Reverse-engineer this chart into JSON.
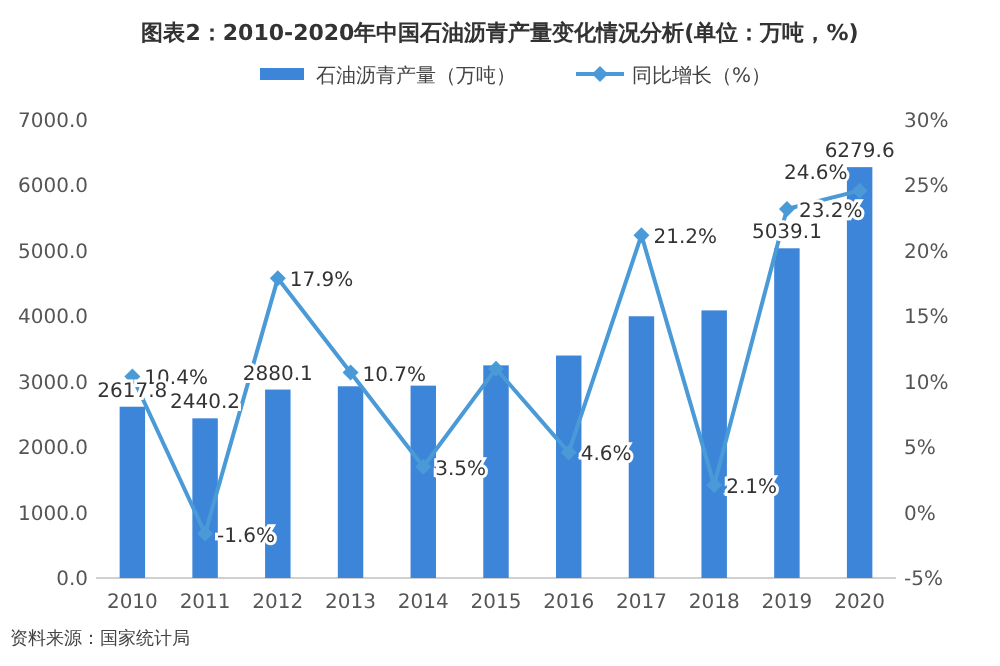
{
  "chart_data": {
    "type": "bar",
    "title": "图表2：2010-2020年中国石油沥青产量变化情况分析(单位：万吨，%)",
    "categories": [
      "2010",
      "2011",
      "2012",
      "2013",
      "2014",
      "2015",
      "2016",
      "2017",
      "2018",
      "2019",
      "2020"
    ],
    "series": [
      {
        "name": "石油沥青产量（万吨）",
        "type": "bar",
        "color": "#3d85d8",
        "values": [
          2617.8,
          2440.2,
          2880.1,
          2930,
          2940,
          3250,
          3400,
          4000,
          4090,
          5039.1,
          6279.6
        ],
        "value_labels": [
          "2617.8",
          "2440.2",
          "2880.1",
          null,
          null,
          null,
          null,
          null,
          null,
          "5039.1",
          "6279.6"
        ]
      },
      {
        "name": "同比增长（%）",
        "type": "line",
        "axis": "y2",
        "color": "#4a9ad8",
        "marker": "diamond",
        "values": [
          10.4,
          -1.6,
          17.9,
          10.7,
          3.5,
          11,
          4.6,
          21.2,
          2.1,
          23.2,
          24.6
        ],
        "value_labels": [
          "10.4%",
          "-1.6%",
          "17.9%",
          "10.7%",
          "3.5%",
          null,
          "4.6%",
          "21.2%",
          "2.1%",
          "23.2%",
          "24.6%"
        ]
      }
    ],
    "ylim": [
      0,
      7000
    ],
    "yticks": [
      {
        "value": 0,
        "label": "0.0"
      },
      {
        "value": 1000,
        "label": "1000.0"
      },
      {
        "value": 2000,
        "label": "2000.0"
      },
      {
        "value": 3000,
        "label": "3000.0"
      },
      {
        "value": 4000,
        "label": "4000.0"
      },
      {
        "value": 5000,
        "label": "5000.0"
      },
      {
        "value": 6000,
        "label": "6000.0"
      },
      {
        "value": 7000,
        "label": "7000.0"
      }
    ],
    "y2lim": [
      -5,
      30
    ],
    "y2ticks": [
      {
        "value": -5,
        "label": "-5%"
      },
      {
        "value": 0,
        "label": "0%"
      },
      {
        "value": 5,
        "label": "5%"
      },
      {
        "value": 10,
        "label": "10%"
      },
      {
        "value": 15,
        "label": "15%"
      },
      {
        "value": 20,
        "label": "20%"
      },
      {
        "value": 25,
        "label": "25%"
      },
      {
        "value": 30,
        "label": "30%"
      }
    ],
    "legend": "top",
    "grid": false,
    "annotations": [
      "资料来源：国家统计局"
    ]
  }
}
